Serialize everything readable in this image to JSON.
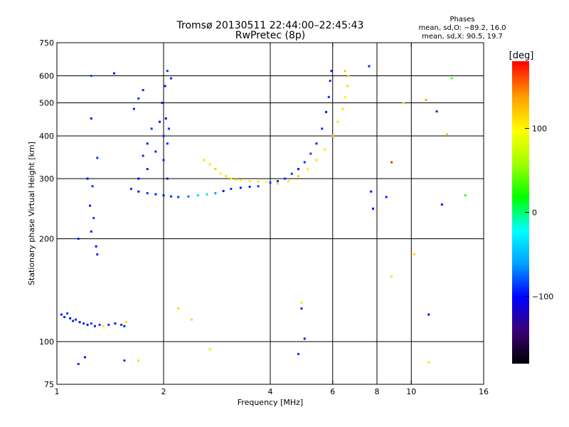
{
  "header": {
    "title": "Tromsø 20130511 22:44:00–22:45:43",
    "subtitle": "RwPretec (8p)"
  },
  "phase_box": {
    "heading": "Phases",
    "line_o": "mean, sd,O: −89.2, 16.0",
    "line_x": "mean, sd,X:  90.5, 19.7"
  },
  "colorbar": {
    "unit": "[deg]",
    "ticks": [
      {
        "value": 100,
        "label": "100"
      },
      {
        "value": 0,
        "label": "0"
      },
      {
        "value": -100,
        "label": "−100"
      }
    ],
    "range": [
      -180,
      180
    ],
    "colors": [
      "#000000",
      "#3b0078",
      "#0000ff",
      "#00a0ff",
      "#00ffff",
      "#00ff00",
      "#a0ff00",
      "#ffff00",
      "#ffa000",
      "#ff0000"
    ]
  },
  "chart_data": {
    "type": "scatter",
    "xlabel": "Frequency [MHz]",
    "ylabel": "Stationary phase Virtual Height [km]",
    "xscale": "log",
    "yscale": "log",
    "xlim": [
      1,
      16
    ],
    "ylim": [
      75,
      750
    ],
    "grid": true,
    "xticks": [
      {
        "value": 1,
        "label": "1"
      },
      {
        "value": 2,
        "label": "2"
      },
      {
        "value": 4,
        "label": "4"
      },
      {
        "value": 6,
        "label": "6"
      },
      {
        "value": 8,
        "label": "8"
      },
      {
        "value": 10,
        "label": "10"
      },
      {
        "value": 16,
        "label": "16"
      }
    ],
    "yticks": [
      {
        "value": 75,
        "label": "75"
      },
      {
        "value": 100,
        "label": "100"
      },
      {
        "value": 200,
        "label": "200"
      },
      {
        "value": 300,
        "label": "300"
      },
      {
        "value": 400,
        "label": "400"
      },
      {
        "value": 500,
        "label": "500"
      },
      {
        "value": 600,
        "label": "600"
      },
      {
        "value": 750,
        "label": "750"
      }
    ],
    "xgrid": [
      2,
      4,
      6,
      8,
      10
    ],
    "ygrid": [
      100,
      200,
      300,
      400,
      500,
      600
    ],
    "points": [
      {
        "x": 1.03,
        "y": 120,
        "phase": -95
      },
      {
        "x": 1.05,
        "y": 118,
        "phase": -90
      },
      {
        "x": 1.07,
        "y": 121,
        "phase": -85
      },
      {
        "x": 1.09,
        "y": 117,
        "phase": -100
      },
      {
        "x": 1.11,
        "y": 115,
        "phase": -92
      },
      {
        "x": 1.13,
        "y": 116,
        "phase": -88
      },
      {
        "x": 1.16,
        "y": 114,
        "phase": -95
      },
      {
        "x": 1.19,
        "y": 113,
        "phase": -90
      },
      {
        "x": 1.22,
        "y": 112,
        "phase": -97
      },
      {
        "x": 1.25,
        "y": 113,
        "phase": -85
      },
      {
        "x": 1.28,
        "y": 111,
        "phase": -92
      },
      {
        "x": 1.32,
        "y": 112,
        "phase": -88
      },
      {
        "x": 1.35,
        "y": 111,
        "phase": 110
      },
      {
        "x": 1.4,
        "y": 112,
        "phase": -90
      },
      {
        "x": 1.46,
        "y": 113,
        "phase": -95
      },
      {
        "x": 1.52,
        "y": 112,
        "phase": -88
      },
      {
        "x": 1.55,
        "y": 111,
        "phase": -92
      },
      {
        "x": 1.57,
        "y": 114,
        "phase": 115
      },
      {
        "x": 1.25,
        "y": 600,
        "phase": -80
      },
      {
        "x": 1.25,
        "y": 450,
        "phase": -95
      },
      {
        "x": 1.3,
        "y": 345,
        "phase": -88
      },
      {
        "x": 1.22,
        "y": 300,
        "phase": -100
      },
      {
        "x": 1.26,
        "y": 285,
        "phase": -90
      },
      {
        "x": 1.24,
        "y": 250,
        "phase": -95
      },
      {
        "x": 1.27,
        "y": 230,
        "phase": -85
      },
      {
        "x": 1.25,
        "y": 210,
        "phase": -92
      },
      {
        "x": 1.29,
        "y": 190,
        "phase": -100
      },
      {
        "x": 1.3,
        "y": 180,
        "phase": -90
      },
      {
        "x": 1.15,
        "y": 200,
        "phase": -88
      },
      {
        "x": 1.45,
        "y": 610,
        "phase": -95
      },
      {
        "x": 1.75,
        "y": 545,
        "phase": -90
      },
      {
        "x": 1.7,
        "y": 515,
        "phase": -88
      },
      {
        "x": 1.65,
        "y": 480,
        "phase": -92
      },
      {
        "x": 1.62,
        "y": 280,
        "phase": -90
      },
      {
        "x": 1.7,
        "y": 275,
        "phase": -95
      },
      {
        "x": 1.8,
        "y": 272,
        "phase": -88
      },
      {
        "x": 1.9,
        "y": 270,
        "phase": -92
      },
      {
        "x": 2.0,
        "y": 268,
        "phase": -97
      },
      {
        "x": 2.1,
        "y": 266,
        "phase": -90
      },
      {
        "x": 2.2,
        "y": 265,
        "phase": -85
      },
      {
        "x": 2.35,
        "y": 266,
        "phase": -70
      },
      {
        "x": 2.5,
        "y": 268,
        "phase": -40
      },
      {
        "x": 2.65,
        "y": 270,
        "phase": -30
      },
      {
        "x": 2.8,
        "y": 272,
        "phase": -60
      },
      {
        "x": 2.95,
        "y": 276,
        "phase": -95
      },
      {
        "x": 3.1,
        "y": 280,
        "phase": -88
      },
      {
        "x": 3.3,
        "y": 282,
        "phase": -92
      },
      {
        "x": 3.5,
        "y": 284,
        "phase": -90
      },
      {
        "x": 3.7,
        "y": 285,
        "phase": -85
      },
      {
        "x": 1.8,
        "y": 320,
        "phase": -92
      },
      {
        "x": 1.8,
        "y": 380,
        "phase": -95
      },
      {
        "x": 1.85,
        "y": 420,
        "phase": -88
      },
      {
        "x": 1.75,
        "y": 350,
        "phase": -90
      },
      {
        "x": 1.7,
        "y": 300,
        "phase": -100
      },
      {
        "x": 1.9,
        "y": 360,
        "phase": -92
      },
      {
        "x": 1.95,
        "y": 440,
        "phase": -95
      },
      {
        "x": 2.0,
        "y": 400,
        "phase": -90
      },
      {
        "x": 2.05,
        "y": 380,
        "phase": -88
      },
      {
        "x": 2.0,
        "y": 340,
        "phase": -92
      },
      {
        "x": 2.02,
        "y": 560,
        "phase": -95
      },
      {
        "x": 2.05,
        "y": 620,
        "phase": -85
      },
      {
        "x": 2.1,
        "y": 590,
        "phase": -90
      },
      {
        "x": 1.98,
        "y": 500,
        "phase": -92
      },
      {
        "x": 2.03,
        "y": 450,
        "phase": -100
      },
      {
        "x": 2.07,
        "y": 420,
        "phase": -88
      },
      {
        "x": 2.05,
        "y": 300,
        "phase": -95
      },
      {
        "x": 2.6,
        "y": 340,
        "phase": 115
      },
      {
        "x": 2.7,
        "y": 330,
        "phase": 110
      },
      {
        "x": 2.8,
        "y": 320,
        "phase": 120
      },
      {
        "x": 2.9,
        "y": 310,
        "phase": 105
      },
      {
        "x": 3.0,
        "y": 305,
        "phase": 115
      },
      {
        "x": 3.1,
        "y": 300,
        "phase": 110
      },
      {
        "x": 3.2,
        "y": 298,
        "phase": 125
      },
      {
        "x": 3.3,
        "y": 297,
        "phase": 100
      },
      {
        "x": 3.5,
        "y": 295,
        "phase": 115
      },
      {
        "x": 3.7,
        "y": 294,
        "phase": 110
      },
      {
        "x": 3.9,
        "y": 293,
        "phase": 105
      },
      {
        "x": 4.0,
        "y": 292,
        "phase": -85
      },
      {
        "x": 4.2,
        "y": 295,
        "phase": -90
      },
      {
        "x": 4.4,
        "y": 300,
        "phase": -92
      },
      {
        "x": 4.6,
        "y": 310,
        "phase": -88
      },
      {
        "x": 4.8,
        "y": 320,
        "phase": -95
      },
      {
        "x": 5.0,
        "y": 335,
        "phase": -90
      },
      {
        "x": 5.2,
        "y": 355,
        "phase": -85
      },
      {
        "x": 5.4,
        "y": 380,
        "phase": -92
      },
      {
        "x": 5.6,
        "y": 420,
        "phase": -90
      },
      {
        "x": 5.75,
        "y": 470,
        "phase": -95
      },
      {
        "x": 5.85,
        "y": 520,
        "phase": -88
      },
      {
        "x": 5.9,
        "y": 580,
        "phase": -90
      },
      {
        "x": 5.95,
        "y": 620,
        "phase": -92
      },
      {
        "x": 4.2,
        "y": 290,
        "phase": 115
      },
      {
        "x": 4.5,
        "y": 295,
        "phase": 110
      },
      {
        "x": 4.8,
        "y": 305,
        "phase": 120
      },
      {
        "x": 5.1,
        "y": 320,
        "phase": 105
      },
      {
        "x": 5.4,
        "y": 340,
        "phase": 115
      },
      {
        "x": 5.7,
        "y": 365,
        "phase": 110
      },
      {
        "x": 6.0,
        "y": 400,
        "phase": 125
      },
      {
        "x": 6.2,
        "y": 440,
        "phase": 115
      },
      {
        "x": 6.4,
        "y": 480,
        "phase": 110
      },
      {
        "x": 6.5,
        "y": 520,
        "phase": 105
      },
      {
        "x": 6.6,
        "y": 560,
        "phase": 115
      },
      {
        "x": 6.65,
        "y": 600,
        "phase": 110
      },
      {
        "x": 6.5,
        "y": 620,
        "phase": 125
      },
      {
        "x": 4.9,
        "y": 130,
        "phase": 110
      },
      {
        "x": 4.9,
        "y": 125,
        "phase": -90
      },
      {
        "x": 5.0,
        "y": 102,
        "phase": -95
      },
      {
        "x": 4.8,
        "y": 92,
        "phase": -88
      },
      {
        "x": 2.2,
        "y": 125,
        "phase": 115
      },
      {
        "x": 2.4,
        "y": 116,
        "phase": 120
      },
      {
        "x": 2.7,
        "y": 95,
        "phase": 110
      },
      {
        "x": 1.7,
        "y": 88,
        "phase": 115
      },
      {
        "x": 1.55,
        "y": 88,
        "phase": -90
      },
      {
        "x": 1.2,
        "y": 90,
        "phase": -95
      },
      {
        "x": 1.15,
        "y": 86,
        "phase": -90
      },
      {
        "x": 7.7,
        "y": 275,
        "phase": -95
      },
      {
        "x": 7.8,
        "y": 245,
        "phase": -100
      },
      {
        "x": 8.5,
        "y": 265,
        "phase": -92
      },
      {
        "x": 8.8,
        "y": 335,
        "phase": 170
      },
      {
        "x": 8.8,
        "y": 155,
        "phase": 115
      },
      {
        "x": 9.5,
        "y": 500,
        "phase": 110
      },
      {
        "x": 10.2,
        "y": 180,
        "phase": 115
      },
      {
        "x": 11.2,
        "y": 120,
        "phase": -95
      },
      {
        "x": 11.8,
        "y": 472,
        "phase": -90
      },
      {
        "x": 12.6,
        "y": 405,
        "phase": 120
      },
      {
        "x": 13.0,
        "y": 590,
        "phase": 40
      },
      {
        "x": 14.2,
        "y": 268,
        "phase": 30
      },
      {
        "x": 11.0,
        "y": 510,
        "phase": 140
      },
      {
        "x": 11.2,
        "y": 87,
        "phase": 115
      },
      {
        "x": 12.2,
        "y": 252,
        "phase": -95
      },
      {
        "x": 7.6,
        "y": 640,
        "phase": -90
      }
    ]
  }
}
